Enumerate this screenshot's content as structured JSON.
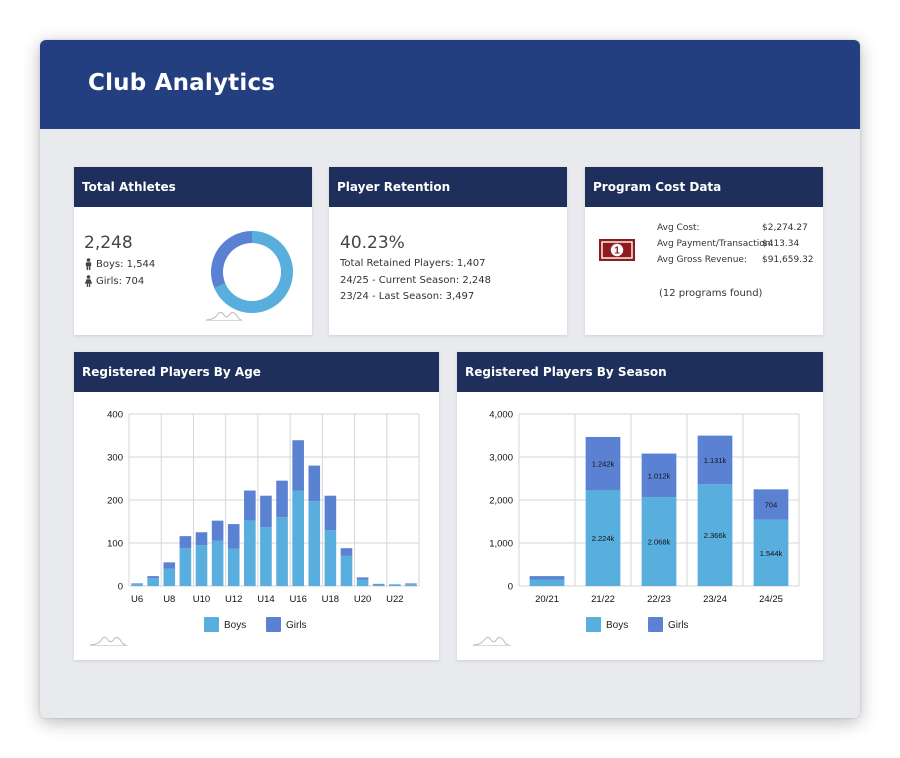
{
  "app": {
    "title": "Club Analytics"
  },
  "total_athletes": {
    "title": "Total Athletes",
    "total": "2,248",
    "boys_label": "Boys: 1,544",
    "girls_label": "Girls: 704",
    "boys": 1544,
    "girls": 704,
    "colors": {
      "boys": "#58aedc",
      "girls": "#5b82d2"
    }
  },
  "player_retention": {
    "title": "Player Retention",
    "rate": "40.23%",
    "lines": [
      "Total Retained Players: 1,407",
      "24/25 - Current Season: 2,248",
      "23/24 - Last Season: 3,497"
    ]
  },
  "program_cost": {
    "title": "Program Cost Data",
    "icon": "money-bill-icon",
    "rows": [
      {
        "label": "Avg Cost:",
        "value": "$2,274.27"
      },
      {
        "label": "Avg Payment/Transaction:",
        "value": "$413.34"
      },
      {
        "label": "Avg Gross Revenue:",
        "value": "$91,659.32"
      }
    ],
    "footer": "(12 programs found)"
  },
  "chart_data": [
    {
      "type": "bar",
      "stacked": true,
      "title": "Registered Players By Age",
      "categories": [
        "U6",
        "U7",
        "U8",
        "U9",
        "U10",
        "U11",
        "U12",
        "U13",
        "U14",
        "U15",
        "U16",
        "U17",
        "U18",
        "U19",
        "U20",
        "U21",
        "U22",
        "U23"
      ],
      "tick_labels": [
        "U6",
        "",
        "U8",
        "",
        "U10",
        "",
        "U12",
        "",
        "U14",
        "",
        "U16",
        "",
        "U18",
        "",
        "U20",
        "",
        "U22",
        ""
      ],
      "series": [
        {
          "name": "Boys",
          "color": "#58aedc",
          "values": [
            4,
            18,
            40,
            88,
            95,
            105,
            87,
            152,
            137,
            160,
            222,
            197,
            130,
            70,
            15,
            3,
            3,
            4
          ]
        },
        {
          "name": "Girls",
          "color": "#5b82d2",
          "values": [
            2,
            5,
            15,
            28,
            30,
            47,
            57,
            70,
            73,
            85,
            117,
            83,
            80,
            18,
            5,
            2,
            1,
            2
          ]
        }
      ],
      "ylim": [
        0,
        400
      ],
      "yticks": [
        "0",
        "100",
        "200",
        "300",
        "400"
      ],
      "grid": true,
      "legend": "bottom"
    },
    {
      "type": "bar",
      "stacked": true,
      "title": "Registered Players By Season",
      "categories": [
        "20/21",
        "21/22",
        "22/23",
        "23/24",
        "24/25"
      ],
      "series": [
        {
          "name": "Boys",
          "color": "#58aedc",
          "values": [
            150,
            2224,
            2068,
            2366,
            1544
          ],
          "labels": [
            "",
            "2.224k",
            "2.068k",
            "2.366k",
            "1.544k"
          ]
        },
        {
          "name": "Girls",
          "color": "#5b82d2",
          "values": [
            80,
            1242,
            1012,
            1131,
            704
          ],
          "labels": [
            "",
            "1.242k",
            "1.012k",
            "1.131k",
            "704"
          ]
        }
      ],
      "ylim": [
        0,
        4000
      ],
      "yticks": [
        "0",
        "1,000",
        "2,000",
        "3,000",
        "4,000"
      ],
      "grid": true,
      "legend": "bottom"
    }
  ]
}
